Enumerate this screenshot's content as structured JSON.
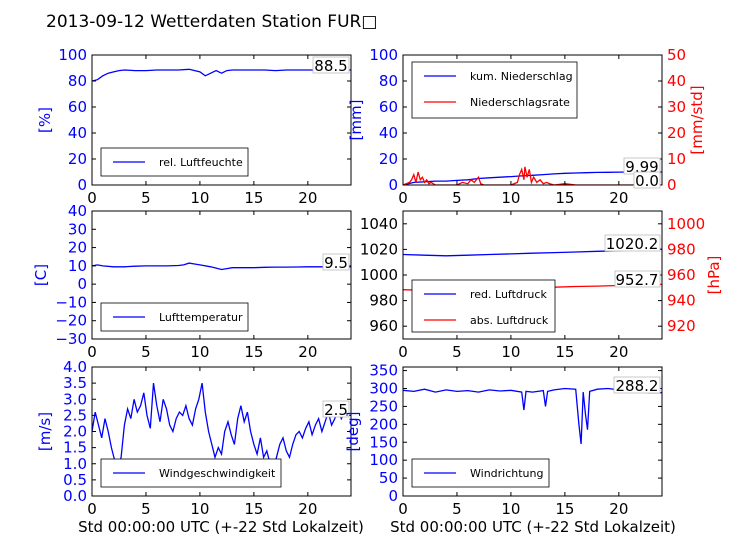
{
  "figure": {
    "title": "2013-09-12 Wetterdaten Station FUR□",
    "xlabel": "Std 00:00:00 UTC (+-22 Std Lokalzeit)"
  },
  "colors": {
    "primary": "#0000ff",
    "secondary": "#ff0000"
  },
  "chart_data": [
    {
      "id": "humidity",
      "type": "line",
      "ylabel": "[%]",
      "ylim": [
        0,
        100
      ],
      "yticks": [
        0,
        20,
        40,
        60,
        80,
        100
      ],
      "xlim": [
        0,
        24
      ],
      "xticks": [
        0,
        5,
        10,
        15,
        20
      ],
      "legend": {
        "location": "lower-left",
        "entries": [
          "rel. Luftfeuchte"
        ]
      },
      "annotations": [
        "88.5"
      ],
      "series": [
        {
          "name": "rel. Luftfeuchte",
          "color": "#0000ff",
          "x": [
            0,
            0.5,
            1,
            1.5,
            2,
            2.5,
            3,
            4,
            5,
            6,
            7,
            8,
            9,
            10,
            10.5,
            11,
            11.5,
            12,
            12.5,
            13,
            14,
            15,
            16,
            17,
            18,
            19,
            20,
            21,
            22,
            23,
            24
          ],
          "y": [
            80,
            81,
            84,
            86,
            87,
            88,
            88.5,
            88,
            88,
            88.5,
            88.5,
            88.5,
            89,
            87,
            84,
            86,
            88,
            86,
            88,
            88.5,
            88.5,
            88.5,
            88.5,
            88,
            88.5,
            88.5,
            88.5,
            88.5,
            88.5,
            88.5,
            88.5
          ]
        }
      ]
    },
    {
      "id": "precipitation",
      "type": "line",
      "ylabel": "[mm]",
      "ylim": [
        0,
        100
      ],
      "yticks": [
        0,
        20,
        40,
        60,
        80,
        100
      ],
      "ylabel2": "[mm/std]",
      "ylim2": [
        0,
        50
      ],
      "yticks2": [
        0,
        10,
        20,
        30,
        40,
        50
      ],
      "xlim": [
        0,
        24
      ],
      "xticks": [
        0,
        5,
        10,
        15,
        20
      ],
      "legend": {
        "location": "upper-left",
        "entries": [
          "kum. Niederschlag",
          "Niederschlagsrate"
        ]
      },
      "annotations": [
        "9.99",
        "0.0"
      ],
      "series": [
        {
          "name": "kum. Niederschlag",
          "axis": "left",
          "color": "#0000ff",
          "x": [
            0,
            0.5,
            1,
            2,
            3,
            4,
            5,
            6,
            7,
            8,
            9,
            10,
            11,
            12,
            13,
            14,
            15,
            16,
            17,
            18,
            19,
            20,
            21,
            22,
            23,
            24
          ],
          "y": [
            0,
            1,
            2,
            2.5,
            3,
            3,
            3.5,
            4,
            5,
            5.5,
            6,
            6.5,
            7,
            7.5,
            8,
            8.5,
            9,
            9.2,
            9.5,
            9.7,
            9.8,
            9.9,
            9.99,
            9.99,
            9.99,
            9.99
          ]
        },
        {
          "name": "Niederschlagsrate",
          "axis": "right",
          "color": "#ff0000",
          "x": [
            0,
            0.6,
            0.8,
            1.0,
            1.2,
            1.4,
            1.6,
            1.8,
            2.0,
            2.2,
            2.4,
            2.6,
            3,
            5,
            5.5,
            6,
            6.3,
            6.6,
            7,
            7.2,
            7.5,
            8,
            9,
            10,
            10.6,
            10.8,
            11.0,
            11.2,
            11.3,
            11.5,
            11.7,
            11.9,
            12.1,
            12.4,
            12.7,
            13.0,
            13.3,
            13.6,
            14,
            15,
            16,
            20,
            22,
            24
          ],
          "y": [
            0,
            1,
            2,
            4,
            1,
            5,
            2,
            3,
            1,
            2,
            0.5,
            1,
            0,
            0,
            1,
            0.5,
            2,
            1,
            3,
            0.5,
            0,
            0,
            0,
            0,
            1,
            4,
            6,
            2,
            7,
            3,
            6,
            1,
            3,
            1,
            2,
            0.5,
            1,
            0.5,
            0,
            0.5,
            0,
            0,
            0,
            0
          ]
        }
      ]
    },
    {
      "id": "temperature",
      "type": "line",
      "ylabel": "[C]",
      "ylim": [
        -30,
        40
      ],
      "yticks": [
        -30,
        -20,
        -10,
        0,
        10,
        20,
        30,
        40
      ],
      "xlim": [
        0,
        24
      ],
      "xticks": [
        0,
        5,
        10,
        15,
        20
      ],
      "legend": {
        "location": "lower-left",
        "entries": [
          "Lufttemperatur"
        ]
      },
      "annotations": [
        "9.5"
      ],
      "series": [
        {
          "name": "Lufttemperatur",
          "color": "#0000ff",
          "x": [
            0,
            0.5,
            1,
            2,
            3,
            4,
            5,
            6,
            7,
            8,
            8.5,
            9,
            9.5,
            10,
            11,
            12,
            12.5,
            13,
            14,
            15,
            16,
            17,
            18,
            19,
            20,
            21,
            22,
            23,
            24
          ],
          "y": [
            10,
            10.5,
            10,
            9.5,
            9.5,
            9.8,
            10,
            10,
            10,
            10.2,
            10.5,
            11.5,
            11,
            10.5,
            9.5,
            8,
            8.5,
            9,
            9,
            9,
            9.2,
            9.3,
            9.3,
            9.4,
            9.5,
            9.5,
            9.5,
            9.5,
            9.5
          ]
        }
      ]
    },
    {
      "id": "pressure",
      "type": "line",
      "ylabel2": "[hPa]",
      "ylim": [
        950,
        1050
      ],
      "yticks": [
        960,
        980,
        1000,
        1020,
        1040
      ],
      "ylim2": [
        910,
        1010
      ],
      "yticks2": [
        920,
        940,
        960,
        980,
        1000
      ],
      "xlim": [
        0,
        24
      ],
      "xticks": [
        0,
        5,
        10,
        15,
        20
      ],
      "legend": {
        "location": "lower-left",
        "entries": [
          "red. Luftdruck",
          "abs. Luftdruck"
        ]
      },
      "annotations": [
        "1020.2",
        "952.7"
      ],
      "series": [
        {
          "name": "red. Luftdruck",
          "axis": "left",
          "color": "#0000ff",
          "x": [
            0,
            2,
            4,
            6,
            8,
            10,
            12,
            14,
            16,
            18,
            20,
            22,
            24
          ],
          "y": [
            1016,
            1015.5,
            1015,
            1015.5,
            1016,
            1016.5,
            1017,
            1017.5,
            1018,
            1018.5,
            1019,
            1020,
            1020.2
          ]
        },
        {
          "name": "abs. Luftdruck",
          "axis": "right",
          "color": "#ff0000",
          "x": [
            0,
            2,
            4,
            6,
            8,
            10,
            12,
            14,
            16,
            18,
            20,
            22,
            24
          ],
          "y": [
            948.5,
            948,
            948,
            948.5,
            949,
            949.5,
            950,
            950.5,
            951,
            951.3,
            951.8,
            952.3,
            952.7
          ]
        }
      ]
    },
    {
      "id": "windspeed",
      "type": "line",
      "ylabel": "[m/s]",
      "ylim": [
        0,
        4
      ],
      "yticks": [
        0.0,
        0.5,
        1.0,
        1.5,
        2.0,
        2.5,
        3.0,
        3.5,
        4.0
      ],
      "xlim": [
        0,
        24
      ],
      "xticks": [
        0,
        5,
        10,
        15,
        20
      ],
      "legend": {
        "location": "lower-center",
        "entries": [
          "Windgeschwindigkeit"
        ]
      },
      "annotations": [
        "2.5"
      ],
      "series": [
        {
          "name": "Windgeschwindigkeit",
          "color": "#0000ff",
          "x": [
            0,
            0.3,
            0.6,
            0.9,
            1.2,
            1.5,
            1.8,
            2.1,
            2.4,
            2.7,
            3.0,
            3.3,
            3.6,
            3.9,
            4.2,
            4.5,
            4.8,
            5.1,
            5.4,
            5.7,
            6.0,
            6.3,
            6.6,
            6.9,
            7.2,
            7.5,
            7.8,
            8.1,
            8.4,
            8.7,
            9.0,
            9.3,
            9.6,
            9.9,
            10.2,
            10.5,
            10.8,
            11.1,
            11.4,
            11.7,
            12.0,
            12.3,
            12.6,
            12.9,
            13.2,
            13.5,
            13.8,
            14.1,
            14.4,
            14.7,
            15.0,
            15.3,
            15.6,
            15.9,
            16.2,
            16.5,
            16.8,
            17.1,
            17.4,
            17.7,
            18.0,
            18.3,
            18.6,
            18.9,
            19.2,
            19.5,
            19.8,
            20.1,
            20.4,
            20.7,
            21.0,
            21.3,
            21.6,
            21.9,
            22.2,
            22.5,
            22.8,
            23.1,
            23.4,
            23.7,
            24.0
          ],
          "y": [
            2.0,
            2.6,
            2.2,
            1.8,
            2.4,
            2.0,
            1.5,
            1.1,
            0.8,
            1.2,
            2.2,
            2.7,
            2.4,
            3.0,
            2.6,
            2.8,
            3.2,
            2.5,
            2.1,
            3.5,
            2.8,
            2.3,
            3.0,
            2.7,
            2.2,
            2.0,
            2.4,
            2.6,
            2.5,
            2.8,
            2.4,
            2.2,
            2.7,
            3.0,
            3.5,
            2.6,
            2.0,
            1.6,
            1.2,
            1.5,
            1.3,
            2.0,
            2.3,
            1.9,
            1.6,
            2.4,
            2.8,
            2.3,
            2.6,
            2.0,
            1.6,
            1.3,
            1.8,
            1.2,
            1.4,
            1.0,
            0.8,
            1.2,
            1.6,
            1.8,
            1.4,
            1.2,
            1.6,
            1.9,
            2.0,
            1.8,
            2.1,
            2.3,
            1.9,
            2.2,
            2.4,
            2.0,
            2.3,
            2.6,
            2.2,
            2.4,
            2.7,
            2.4,
            2.6,
            2.5,
            2.5
          ]
        }
      ]
    },
    {
      "id": "winddir",
      "type": "line",
      "ylabel": "[deg]",
      "ylim": [
        0,
        360
      ],
      "yticks": [
        0,
        50,
        100,
        150,
        200,
        250,
        300,
        350
      ],
      "xlim": [
        0,
        24
      ],
      "xticks": [
        0,
        5,
        10,
        15,
        20
      ],
      "legend": {
        "location": "lower-left",
        "entries": [
          "Windrichtung"
        ]
      },
      "annotations": [
        "288.2"
      ],
      "series": [
        {
          "name": "Windrichtung",
          "color": "#0000ff",
          "x": [
            0,
            1,
            2,
            3,
            4,
            5,
            6,
            7,
            8,
            9,
            10,
            11,
            11.2,
            11.4,
            12,
            13,
            13.2,
            13.4,
            14,
            15,
            16,
            16.3,
            16.5,
            16.7,
            16.9,
            17.1,
            17.3,
            18,
            19,
            20,
            21,
            22,
            23,
            24
          ],
          "y": [
            295,
            292,
            298,
            290,
            296,
            292,
            294,
            290,
            296,
            293,
            295,
            290,
            240,
            292,
            290,
            294,
            250,
            292,
            296,
            300,
            298,
            200,
            145,
            290,
            230,
            185,
            292,
            298,
            300,
            296,
            292,
            290,
            288,
            288.2
          ]
        }
      ]
    }
  ]
}
